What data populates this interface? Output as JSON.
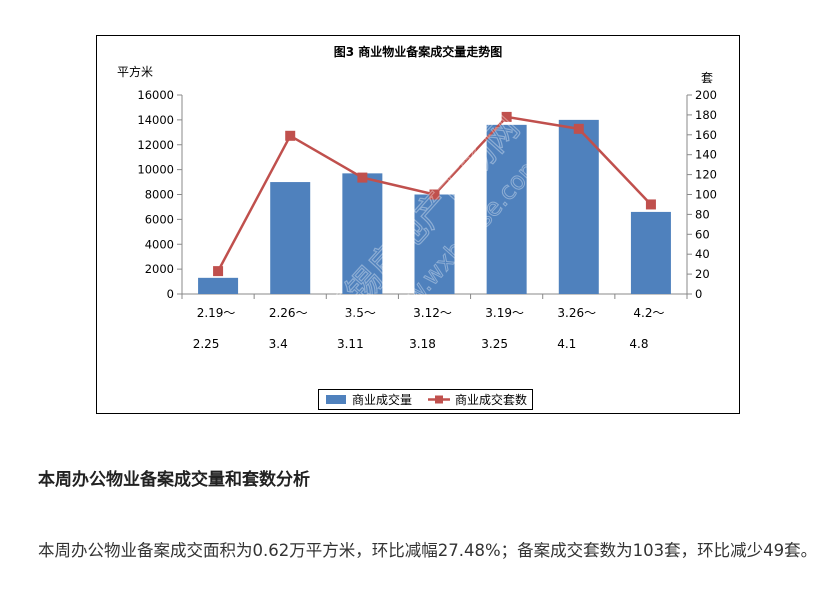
{
  "chart_data": {
    "type": "bar",
    "title": "图3  商业物业备案成交量走势图",
    "y_left_label": "平方米",
    "y_right_label": "套",
    "y_left_ticks": [
      "0",
      "2000",
      "4000",
      "6000",
      "8000",
      "10000",
      "12000",
      "14000",
      "16000"
    ],
    "y_right_ticks": [
      "0",
      "20",
      "40",
      "60",
      "80",
      "100",
      "120",
      "140",
      "160",
      "180",
      "200"
    ],
    "ylim_left": [
      0,
      16000
    ],
    "ylim_right": [
      0,
      200
    ],
    "categories": [
      {
        "line1": "2.19～",
        "line2": "2.25"
      },
      {
        "line1": "2.26～",
        "line2": "3.4"
      },
      {
        "line1": "3.5～",
        "line2": "3.11"
      },
      {
        "line1": "3.12～",
        "line2": "3.18"
      },
      {
        "line1": "3.19～",
        "line2": "3.25"
      },
      {
        "line1": "3.26～",
        "line2": "4.1"
      },
      {
        "line1": "4.2～",
        "line2": "4.8"
      }
    ],
    "series": [
      {
        "name": "商业成交量",
        "type": "bar",
        "axis": "left",
        "color": "#4f81bd",
        "values": [
          1300,
          9000,
          9700,
          8000,
          13600,
          14000,
          6600
        ]
      },
      {
        "name": "商业成交套数",
        "type": "line",
        "axis": "right",
        "color": "#c0504d",
        "values": [
          23,
          159,
          117,
          100,
          178,
          166,
          90
        ]
      }
    ],
    "grid": false,
    "legend_position": "bottom"
  },
  "watermark": {
    "text1": "无锡房地产市场网",
    "text2": "www.wxhouse.com"
  },
  "article": {
    "heading": "本周办公物业备案成交量和套数分析",
    "paragraph": "本周办公物业备案成交面积为0.62万平方米，环比减幅27.48%；备案成交套数为103套，环比减少49套。"
  }
}
